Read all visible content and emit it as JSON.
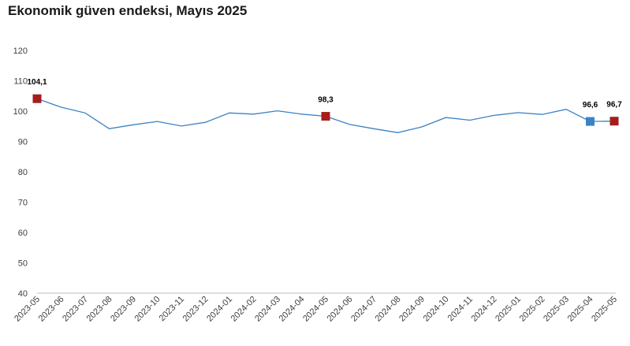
{
  "chart_data": {
    "type": "line",
    "title": "Ekonomik güven endeksi, Mayıs 2025",
    "xlabel": "",
    "ylabel": "",
    "ylim": [
      40,
      120
    ],
    "yticks": [
      40,
      50,
      60,
      70,
      80,
      90,
      100,
      110,
      120
    ],
    "grid": false,
    "legend": "none",
    "categories": [
      "2023-05",
      "2023-06",
      "2023-07",
      "2023-08",
      "2023-09",
      "2023-10",
      "2023-11",
      "2023-12",
      "2024-01",
      "2024-02",
      "2024-03",
      "2024-04",
      "2024-05",
      "2024-06",
      "2024-07",
      "2024-08",
      "2024-09",
      "2024-10",
      "2024-11",
      "2024-12",
      "2025-01",
      "2025-02",
      "2025-03",
      "2025-04",
      "2025-05"
    ],
    "series": [
      {
        "values": [
          104.1,
          101.3,
          99.4,
          94.2,
          95.5,
          96.6,
          95.1,
          96.3,
          99.4,
          99.0,
          100.1,
          99.0,
          98.3,
          95.6,
          94.2,
          92.9,
          94.8,
          97.9,
          97.0,
          98.6,
          99.5,
          98.9,
          100.6,
          96.6,
          96.7
        ],
        "color": "#3b82c4"
      }
    ],
    "highlights": [
      {
        "index": 0,
        "label": "104,1",
        "color": "#a61c1c"
      },
      {
        "index": 12,
        "label": "98,3",
        "color": "#a61c1c"
      },
      {
        "index": 23,
        "label": "96,6",
        "color": "#3a83c6"
      },
      {
        "index": 24,
        "label": "96,7",
        "color": "#a61c1c"
      }
    ]
  }
}
